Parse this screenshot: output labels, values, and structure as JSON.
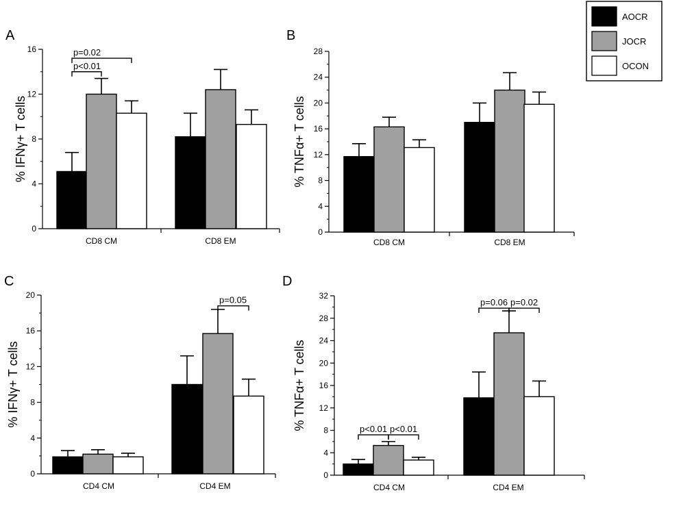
{
  "colors": {
    "AOCR": "#000000",
    "JOCR": "#a0a0a0",
    "OCON": "#ffffff",
    "axis": "#000000"
  },
  "legend": {
    "entries": [
      "AOCR",
      "JOCR",
      "OCON"
    ],
    "placement": "top-right"
  },
  "chart_data": [
    {
      "type": "bar",
      "panel": "A",
      "ylabel_pre": "% IFN",
      "ylabel_sym": "γ",
      "ylabel_post": "+ T cells",
      "ylim": [
        0,
        16
      ],
      "yticks": [
        0,
        4,
        8,
        12,
        16
      ],
      "categories": [
        "CD8 CM",
        "CD8 EM"
      ],
      "series": [
        {
          "name": "AOCR",
          "values": [
            5.1,
            8.2
          ],
          "errors": [
            1.7,
            2.1
          ]
        },
        {
          "name": "JOCR",
          "values": [
            12.0,
            12.4
          ],
          "errors": [
            1.4,
            1.8
          ]
        },
        {
          "name": "OCON",
          "values": [
            10.3,
            9.3
          ],
          "errors": [
            1.1,
            1.3
          ]
        }
      ],
      "annotations": [
        {
          "text": "p=0.02",
          "category": 0,
          "from": 0,
          "to": 2,
          "y": 15.2
        },
        {
          "text": "p<0.01",
          "category": 0,
          "from": 0,
          "to": 1,
          "y": 14.0
        }
      ]
    },
    {
      "type": "bar",
      "panel": "B",
      "ylabel_pre": "% TNF",
      "ylabel_sym": "α",
      "ylabel_post": "+ T cells",
      "ylim": [
        0,
        28
      ],
      "yticks": [
        0,
        4,
        8,
        12,
        16,
        20,
        24,
        28
      ],
      "categories": [
        "CD8 CM",
        "CD8 EM"
      ],
      "series": [
        {
          "name": "AOCR",
          "values": [
            11.7,
            17.0
          ],
          "errors": [
            2.0,
            3.0
          ]
        },
        {
          "name": "JOCR",
          "values": [
            16.3,
            22.0
          ],
          "errors": [
            1.5,
            2.7
          ]
        },
        {
          "name": "OCON",
          "values": [
            13.1,
            19.8
          ],
          "errors": [
            1.2,
            1.9
          ]
        }
      ],
      "annotations": []
    },
    {
      "type": "bar",
      "panel": "C",
      "ylabel_pre": "% IFN",
      "ylabel_sym": "γ",
      "ylabel_post": "+ T cells",
      "ylim": [
        0,
        20
      ],
      "yticks": [
        0,
        4,
        8,
        12,
        16,
        20
      ],
      "categories": [
        "CD4 CM",
        "CD4 EM"
      ],
      "series": [
        {
          "name": "AOCR",
          "values": [
            1.9,
            10.0
          ],
          "errors": [
            0.7,
            3.2
          ]
        },
        {
          "name": "JOCR",
          "values": [
            2.2,
            15.7
          ],
          "errors": [
            0.5,
            2.7
          ]
        },
        {
          "name": "OCON",
          "values": [
            1.9,
            8.7
          ],
          "errors": [
            0.4,
            1.9
          ]
        }
      ],
      "annotations": [
        {
          "text": "p=0.05",
          "category": 1,
          "from": 1,
          "to": 2,
          "y": 18.8
        }
      ]
    },
    {
      "type": "bar",
      "panel": "D",
      "ylabel_pre": "% TNF",
      "ylabel_sym": "α",
      "ylabel_post": "+ T cells",
      "ylim": [
        0,
        32
      ],
      "yticks": [
        0,
        4,
        8,
        12,
        16,
        20,
        24,
        28,
        32
      ],
      "categories": [
        "CD4 CM",
        "CD4 EM"
      ],
      "series": [
        {
          "name": "AOCR",
          "values": [
            2.0,
            13.8
          ],
          "errors": [
            0.8,
            4.6
          ]
        },
        {
          "name": "JOCR",
          "values": [
            5.3,
            25.4
          ],
          "errors": [
            0.7,
            3.9
          ]
        },
        {
          "name": "OCON",
          "values": [
            2.7,
            14.0
          ],
          "errors": [
            0.5,
            2.8
          ]
        }
      ],
      "annotations": [
        {
          "text": "p<0.01",
          "category": 0,
          "from": 0,
          "to": 1,
          "y": 7.2
        },
        {
          "text": "p<0.01",
          "category": 0,
          "from": 1,
          "to": 2,
          "y": 7.2
        },
        {
          "text": "p=0.06",
          "category": 1,
          "from": 0,
          "to": 1,
          "y": 29.8
        },
        {
          "text": "p=0.02",
          "category": 1,
          "from": 1,
          "to": 2,
          "y": 29.8
        }
      ]
    }
  ]
}
